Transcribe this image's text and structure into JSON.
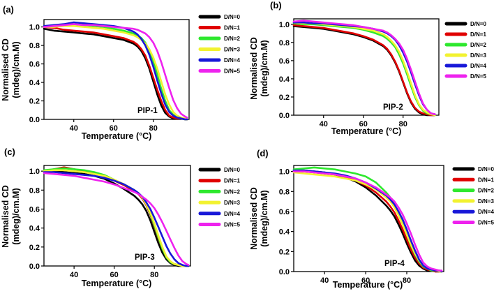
{
  "figure": {
    "legend_colors": [
      "#000000",
      "#e00000",
      "#2ee82e",
      "#f2f230",
      "#1818d8",
      "#ee22ee"
    ]
  },
  "chart_data": [
    {
      "type": "line",
      "panel_label": "(a)",
      "title": "PIP-1",
      "xlabel": "Temperature (°C)",
      "ylabel": [
        "Normalised CD",
        "(mdeg)/cm.M)"
      ],
      "xlim": [
        25,
        98
      ],
      "ylim": [
        0,
        1.08
      ],
      "xticks": [
        40,
        60,
        80
      ],
      "yticks": [
        0.0,
        0.2,
        0.4,
        0.6,
        0.8,
        1.0
      ],
      "x": [
        25,
        30,
        35,
        40,
        45,
        50,
        55,
        60,
        65,
        70,
        72,
        74,
        76,
        78,
        80,
        82,
        84,
        86,
        88,
        90,
        92,
        94,
        96,
        97
      ],
      "series": [
        {
          "name": "D/N=0",
          "values": [
            0.98,
            0.96,
            0.95,
            0.94,
            0.93,
            0.92,
            0.9,
            0.88,
            0.86,
            0.82,
            0.79,
            0.74,
            0.66,
            0.55,
            0.41,
            0.27,
            0.15,
            0.07,
            0.03,
            0.01,
            0.01,
            0.01,
            0.0,
            0.0
          ]
        },
        {
          "name": "D/N=1",
          "values": [
            1.0,
            0.99,
            0.97,
            0.96,
            0.95,
            0.94,
            0.92,
            0.9,
            0.88,
            0.84,
            0.81,
            0.76,
            0.69,
            0.58,
            0.45,
            0.32,
            0.2,
            0.1,
            0.04,
            0.02,
            0.01,
            0.01,
            0.0,
            0.0
          ]
        },
        {
          "name": "D/N=2",
          "values": [
            1.01,
            1.01,
            1.02,
            1.03,
            1.02,
            1.01,
            1.0,
            0.98,
            0.96,
            0.93,
            0.91,
            0.88,
            0.83,
            0.75,
            0.63,
            0.48,
            0.33,
            0.2,
            0.1,
            0.05,
            0.03,
            0.01,
            0.0,
            0.0
          ]
        },
        {
          "name": "D/N=3",
          "values": [
            1.0,
            1.0,
            1.01,
            1.01,
            1.0,
            0.99,
            0.98,
            0.96,
            0.94,
            0.91,
            0.89,
            0.86,
            0.82,
            0.76,
            0.67,
            0.55,
            0.41,
            0.27,
            0.16,
            0.08,
            0.04,
            0.02,
            0.01,
            0.0
          ]
        },
        {
          "name": "D/N=4",
          "values": [
            1.01,
            1.02,
            1.03,
            1.05,
            1.04,
            1.03,
            1.02,
            1.01,
            0.99,
            0.95,
            0.92,
            0.87,
            0.8,
            0.7,
            0.57,
            0.42,
            0.28,
            0.16,
            0.08,
            0.04,
            0.02,
            0.01,
            0.0,
            0.0
          ]
        },
        {
          "name": "D/N=5",
          "values": [
            1.0,
            1.01,
            1.02,
            1.03,
            1.02,
            1.02,
            1.01,
            1.0,
            0.99,
            0.98,
            0.97,
            0.95,
            0.93,
            0.89,
            0.83,
            0.74,
            0.62,
            0.48,
            0.34,
            0.21,
            0.12,
            0.06,
            0.03,
            0.02
          ]
        }
      ]
    },
    {
      "type": "line",
      "panel_label": "(b)",
      "title": "PIP-2",
      "xlabel": "Temperature (°C)",
      "ylabel": [
        "Normalised CD",
        "(mdeg)/cm.M)"
      ],
      "xlim": [
        25,
        98
      ],
      "ylim": [
        0,
        1.06
      ],
      "xticks": [
        40,
        60,
        80
      ],
      "yticks": [
        0.0,
        0.2,
        0.4,
        0.6,
        0.8,
        1.0
      ],
      "x": [
        25,
        30,
        35,
        40,
        45,
        50,
        55,
        60,
        65,
        70,
        72,
        74,
        76,
        78,
        80,
        82,
        84,
        86,
        88,
        90,
        92,
        94,
        96
      ],
      "series": [
        {
          "name": "D/N=0",
          "values": [
            0.98,
            0.97,
            0.96,
            0.95,
            0.93,
            0.91,
            0.89,
            0.86,
            0.82,
            0.76,
            0.72,
            0.66,
            0.58,
            0.48,
            0.36,
            0.24,
            0.14,
            0.07,
            0.03,
            0.01,
            0.0,
            0.0,
            0.0
          ]
        },
        {
          "name": "D/N=1",
          "values": [
            0.99,
            0.98,
            0.97,
            0.96,
            0.94,
            0.92,
            0.9,
            0.87,
            0.83,
            0.77,
            0.73,
            0.67,
            0.59,
            0.49,
            0.37,
            0.25,
            0.15,
            0.08,
            0.04,
            0.02,
            0.01,
            0.0,
            0.0
          ]
        },
        {
          "name": "D/N=2",
          "values": [
            1.01,
            1.0,
            1.0,
            0.99,
            0.98,
            0.97,
            0.96,
            0.94,
            0.91,
            0.87,
            0.84,
            0.8,
            0.75,
            0.67,
            0.57,
            0.45,
            0.32,
            0.2,
            0.11,
            0.05,
            0.02,
            0.01,
            0.0
          ]
        },
        {
          "name": "D/N=3",
          "values": [
            1.02,
            1.01,
            1.01,
            1.0,
            0.99,
            0.98,
            0.97,
            0.95,
            0.93,
            0.89,
            0.86,
            0.82,
            0.77,
            0.7,
            0.6,
            0.48,
            0.35,
            0.22,
            0.12,
            0.06,
            0.03,
            0.01,
            0.0
          ]
        },
        {
          "name": "D/N=4",
          "values": [
            1.02,
            1.02,
            1.01,
            1.01,
            1.0,
            0.99,
            0.98,
            0.97,
            0.95,
            0.92,
            0.9,
            0.87,
            0.83,
            0.77,
            0.69,
            0.59,
            0.47,
            0.34,
            0.22,
            0.12,
            0.06,
            0.02,
            0.01
          ]
        },
        {
          "name": "D/N=5",
          "values": [
            1.03,
            1.04,
            1.03,
            1.02,
            1.01,
            1.0,
            0.99,
            0.97,
            0.95,
            0.93,
            0.91,
            0.88,
            0.84,
            0.79,
            0.72,
            0.62,
            0.5,
            0.37,
            0.24,
            0.13,
            0.06,
            0.02,
            0.01
          ]
        }
      ]
    },
    {
      "type": "line",
      "panel_label": "(c)",
      "title": "PIP-3",
      "xlabel": "Temperature (°C)",
      "ylabel": [
        "Normalised CD",
        "(mdeg)/cm.M)"
      ],
      "xlim": [
        25,
        98
      ],
      "ylim": [
        0,
        1.06
      ],
      "xticks": [
        40,
        60,
        80
      ],
      "yticks": [
        0.0,
        0.2,
        0.4,
        0.6,
        0.8,
        1.0
      ],
      "x": [
        25,
        30,
        35,
        40,
        45,
        50,
        55,
        60,
        65,
        70,
        72,
        74,
        76,
        78,
        80,
        82,
        84,
        86,
        88,
        90,
        92,
        94,
        96,
        97
      ],
      "series": [
        {
          "name": "D/N=0",
          "values": [
            1.0,
            1.0,
            0.99,
            0.98,
            0.97,
            0.95,
            0.92,
            0.87,
            0.81,
            0.74,
            0.7,
            0.65,
            0.58,
            0.48,
            0.36,
            0.24,
            0.14,
            0.07,
            0.03,
            0.01,
            0.0,
            0.0,
            0.0,
            0.0
          ]
        },
        {
          "name": "D/N=1",
          "values": [
            1.0,
            1.02,
            1.04,
            1.02,
            1.0,
            0.98,
            0.95,
            0.9,
            0.85,
            0.79,
            0.76,
            0.71,
            0.64,
            0.54,
            0.42,
            0.29,
            0.18,
            0.09,
            0.04,
            0.02,
            0.01,
            0.0,
            0.0,
            0.0
          ]
        },
        {
          "name": "D/N=2",
          "values": [
            1.01,
            1.02,
            1.03,
            1.02,
            1.01,
            0.99,
            0.96,
            0.91,
            0.86,
            0.8,
            0.77,
            0.72,
            0.65,
            0.55,
            0.43,
            0.3,
            0.18,
            0.09,
            0.04,
            0.02,
            0.01,
            0.0,
            0.0,
            0.0
          ]
        },
        {
          "name": "D/N=3",
          "values": [
            1.0,
            1.01,
            1.01,
            1.0,
            0.99,
            0.97,
            0.95,
            0.91,
            0.86,
            0.8,
            0.77,
            0.72,
            0.65,
            0.56,
            0.45,
            0.32,
            0.2,
            0.1,
            0.05,
            0.02,
            0.01,
            0.0,
            0.0,
            0.0
          ]
        },
        {
          "name": "D/N=4",
          "values": [
            0.99,
            0.99,
            0.98,
            0.97,
            0.96,
            0.95,
            0.93,
            0.9,
            0.86,
            0.8,
            0.77,
            0.73,
            0.67,
            0.6,
            0.51,
            0.41,
            0.31,
            0.21,
            0.13,
            0.07,
            0.03,
            0.01,
            0.0,
            0.0
          ]
        },
        {
          "name": "D/N=5",
          "values": [
            0.98,
            0.97,
            0.96,
            0.95,
            0.93,
            0.91,
            0.89,
            0.86,
            0.82,
            0.78,
            0.76,
            0.73,
            0.7,
            0.66,
            0.61,
            0.54,
            0.46,
            0.37,
            0.28,
            0.19,
            0.11,
            0.05,
            0.02,
            0.01
          ]
        }
      ]
    },
    {
      "type": "line",
      "panel_label": "(d)",
      "title": "PIP-4",
      "xlabel": "Temperature (°C)",
      "ylabel": [
        "Normalised CD",
        "(mdeg)/cm.M)"
      ],
      "xlim": [
        25,
        98
      ],
      "ylim": [
        0,
        1.06
      ],
      "xticks": [
        40,
        60,
        80
      ],
      "yticks": [
        0.0,
        0.2,
        0.4,
        0.6,
        0.8,
        1.0
      ],
      "x": [
        25,
        30,
        35,
        40,
        45,
        50,
        55,
        60,
        65,
        70,
        72,
        74,
        76,
        78,
        80,
        82,
        84,
        86,
        88,
        90,
        92,
        94,
        96,
        97
      ],
      "series": [
        {
          "name": "D/N=0",
          "values": [
            1.01,
            1.01,
            1.0,
            0.99,
            0.97,
            0.94,
            0.9,
            0.84,
            0.76,
            0.66,
            0.61,
            0.55,
            0.47,
            0.38,
            0.28,
            0.19,
            0.11,
            0.06,
            0.03,
            0.01,
            0.01,
            0.0,
            0.0,
            0.0
          ]
        },
        {
          "name": "D/N=1",
          "values": [
            1.0,
            1.0,
            0.99,
            0.98,
            0.97,
            0.95,
            0.91,
            0.86,
            0.79,
            0.7,
            0.65,
            0.59,
            0.51,
            0.42,
            0.32,
            0.22,
            0.14,
            0.08,
            0.04,
            0.02,
            0.01,
            0.0,
            0.0,
            0.0
          ]
        },
        {
          "name": "D/N=2",
          "values": [
            1.02,
            1.03,
            1.04,
            1.03,
            1.02,
            1.0,
            0.98,
            0.95,
            0.89,
            0.79,
            0.74,
            0.67,
            0.58,
            0.48,
            0.37,
            0.26,
            0.17,
            0.1,
            0.05,
            0.03,
            0.01,
            0.01,
            0.0,
            0.0
          ]
        },
        {
          "name": "D/N=3",
          "values": [
            0.99,
            0.98,
            0.97,
            0.96,
            0.95,
            0.93,
            0.91,
            0.87,
            0.82,
            0.74,
            0.7,
            0.64,
            0.56,
            0.47,
            0.37,
            0.27,
            0.18,
            0.11,
            0.06,
            0.03,
            0.02,
            0.01,
            0.0,
            0.0
          ]
        },
        {
          "name": "D/N=4",
          "values": [
            1.01,
            1.01,
            1.0,
            0.99,
            0.98,
            0.96,
            0.93,
            0.89,
            0.83,
            0.76,
            0.72,
            0.67,
            0.6,
            0.52,
            0.42,
            0.31,
            0.21,
            0.12,
            0.06,
            0.03,
            0.02,
            0.01,
            0.01,
            0.0
          ]
        },
        {
          "name": "D/N=5",
          "values": [
            1.0,
            1.0,
            0.99,
            0.98,
            0.97,
            0.95,
            0.93,
            0.89,
            0.84,
            0.77,
            0.74,
            0.7,
            0.64,
            0.57,
            0.48,
            0.38,
            0.27,
            0.17,
            0.09,
            0.05,
            0.03,
            0.02,
            0.01,
            0.01
          ]
        }
      ]
    }
  ]
}
